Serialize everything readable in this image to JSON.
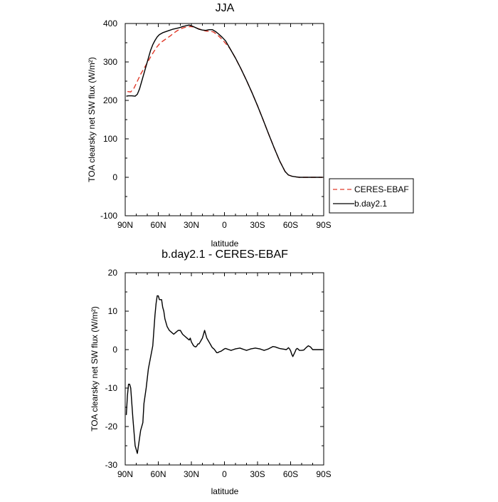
{
  "chart_data": [
    {
      "type": "line",
      "title": "JJA",
      "xlabel": "latitude",
      "ylabel": "TOA clearsky net SW flux (W/m²)",
      "ylim": [
        -100,
        400
      ],
      "xlim": [
        90,
        -90
      ],
      "x_ticks": [
        90,
        60,
        30,
        0,
        -30,
        -60,
        -90
      ],
      "x_tick_labels": [
        "90N",
        "60N",
        "30N",
        "0",
        "30S",
        "60S",
        "90S"
      ],
      "y_ticks": [
        -100,
        0,
        100,
        200,
        300,
        400
      ],
      "y_tick_labels": [
        "-100",
        "0",
        "100",
        "200",
        "300",
        "400"
      ],
      "legend_position": "right",
      "series": [
        {
          "name": "CERES-EBAF",
          "color": "#e03a2a",
          "dash": "dashed",
          "x": [
            88,
            85,
            82,
            79,
            76,
            73,
            70,
            67,
            64,
            61,
            58,
            55,
            52,
            49,
            46,
            43,
            40,
            37,
            34,
            31,
            28,
            25,
            22,
            19,
            16,
            13,
            10,
            7,
            4,
            1,
            -5,
            -10,
            -15,
            -20,
            -25,
            -30,
            -35,
            -40,
            -45,
            -50,
            -55,
            -58,
            -61,
            -63,
            -65,
            -68,
            -71,
            -75,
            -80,
            -85,
            -89
          ],
          "y": [
            223,
            222,
            232,
            250,
            268,
            283,
            298,
            313,
            327,
            340,
            350,
            356,
            362,
            368,
            375,
            381,
            386,
            389,
            391,
            392,
            391,
            388,
            385,
            382,
            380,
            380,
            378,
            372,
            364,
            355,
            335,
            310,
            282,
            252,
            220,
            186,
            150,
            113,
            77,
            43,
            15,
            6,
            3,
            2,
            1,
            0,
            0,
            0,
            0,
            0,
            0
          ]
        },
        {
          "name": "b.day2.1",
          "color": "#000000",
          "dash": "solid",
          "x": [
            89,
            87,
            84,
            81,
            79,
            77,
            75,
            73,
            71,
            69,
            67,
            65,
            63,
            61,
            59,
            56,
            53,
            50,
            47,
            44,
            41,
            38,
            35,
            32,
            29,
            26,
            23,
            20,
            17,
            14,
            11,
            8,
            5,
            2,
            -1,
            -5,
            -10,
            -15,
            -20,
            -25,
            -30,
            -35,
            -40,
            -45,
            -50,
            -55,
            -58,
            -61,
            -63,
            -65,
            -68,
            -71,
            -75,
            -80,
            -85,
            -89
          ],
          "y": [
            211,
            212,
            212,
            211,
            216,
            230,
            250,
            270,
            290,
            310,
            330,
            345,
            356,
            365,
            371,
            376,
            379,
            382,
            385,
            387,
            389,
            392,
            394,
            396,
            393,
            389,
            385,
            383,
            382,
            384,
            384,
            379,
            372,
            364,
            355,
            335,
            310,
            282,
            252,
            220,
            186,
            150,
            113,
            77,
            43,
            15,
            6,
            3,
            2,
            1,
            0,
            0,
            0,
            0,
            0,
            0
          ]
        }
      ]
    },
    {
      "type": "line",
      "title": "b.day2.1 - CERES-EBAF",
      "xlabel": "latitude",
      "ylabel": "TOA clearsky net SW flux (W/m²)",
      "ylim": [
        -30,
        20
      ],
      "xlim": [
        90,
        -90
      ],
      "x_ticks": [
        90,
        60,
        30,
        0,
        -30,
        -60,
        -90
      ],
      "x_tick_labels": [
        "90N",
        "60N",
        "30N",
        "0",
        "30S",
        "60S",
        "90S"
      ],
      "y_ticks": [
        -30,
        -20,
        -10,
        0,
        10,
        20
      ],
      "y_tick_labels": [
        "-30",
        "-20",
        "-10",
        "0",
        "10",
        "20"
      ],
      "series": [
        {
          "color": "#000000",
          "dash": "solid",
          "x": [
            89,
            88,
            87,
            86,
            85,
            83,
            81,
            79,
            77,
            76,
            74,
            73,
            71,
            69,
            67,
            65,
            64,
            63,
            62,
            61,
            60,
            59,
            58,
            57,
            56,
            55,
            54,
            53,
            52,
            51,
            50,
            48,
            46,
            44,
            42,
            40,
            38,
            36,
            34,
            32,
            31,
            30,
            29,
            28,
            27,
            26,
            25,
            24,
            23,
            22,
            21,
            20,
            19,
            18,
            17,
            16,
            15,
            14,
            13,
            12,
            11,
            10,
            9,
            8,
            7,
            6,
            5,
            4,
            3,
            2,
            1,
            0,
            -1,
            -2,
            -4,
            -6,
            -8,
            -10,
            -12,
            -14,
            -16,
            -18,
            -20,
            -22,
            -24,
            -26,
            -28,
            -30,
            -32,
            -34,
            -36,
            -38,
            -40,
            -42,
            -44,
            -46,
            -48,
            -50,
            -52,
            -54,
            -56,
            -57,
            -58,
            -59,
            -60,
            -61,
            -62,
            -63,
            -64,
            -65,
            -66,
            -67,
            -68,
            -70,
            -72,
            -74,
            -76,
            -78,
            -80,
            -82,
            -85,
            -88,
            -89
          ],
          "y": [
            -17,
            -12,
            -9,
            -9,
            -10,
            -18,
            -25,
            -27,
            -23,
            -21,
            -19,
            -14,
            -10,
            -5,
            -2,
            1,
            5,
            9,
            12,
            14,
            14,
            13,
            13,
            13,
            11,
            10,
            8,
            7,
            6,
            5.5,
            5,
            4.5,
            4,
            4.5,
            5,
            5,
            4,
            3.5,
            3,
            2.5,
            3,
            2,
            1.5,
            1,
            0.8,
            0.7,
            1,
            1.5,
            1.5,
            2,
            2.5,
            3,
            4,
            5,
            4,
            3,
            2.5,
            2,
            1.5,
            1,
            0.5,
            0.3,
            0,
            -0.4,
            -0.8,
            -0.8,
            -0.6,
            -0.5,
            -0.4,
            -0.2,
            0,
            0.2,
            0.3,
            0.2,
            0,
            -0.2,
            0,
            0.2,
            0.3,
            0.4,
            0.2,
            0,
            -0.2,
            0,
            0.2,
            0.3,
            0.4,
            0.3,
            0.2,
            0,
            -0.2,
            0,
            0.2,
            0.5,
            0.8,
            0.7,
            0.5,
            0.3,
            0.2,
            0.1,
            0,
            0.2,
            0.5,
            0.2,
            -0.3,
            -1.2,
            -1.8,
            -1.2,
            -0.6,
            0.1,
            0.3,
            0.1,
            -0.2,
            -0.2,
            -0.1,
            0.5,
            1,
            0.7,
            0,
            0,
            0,
            0,
            0
          ]
        }
      ]
    }
  ]
}
